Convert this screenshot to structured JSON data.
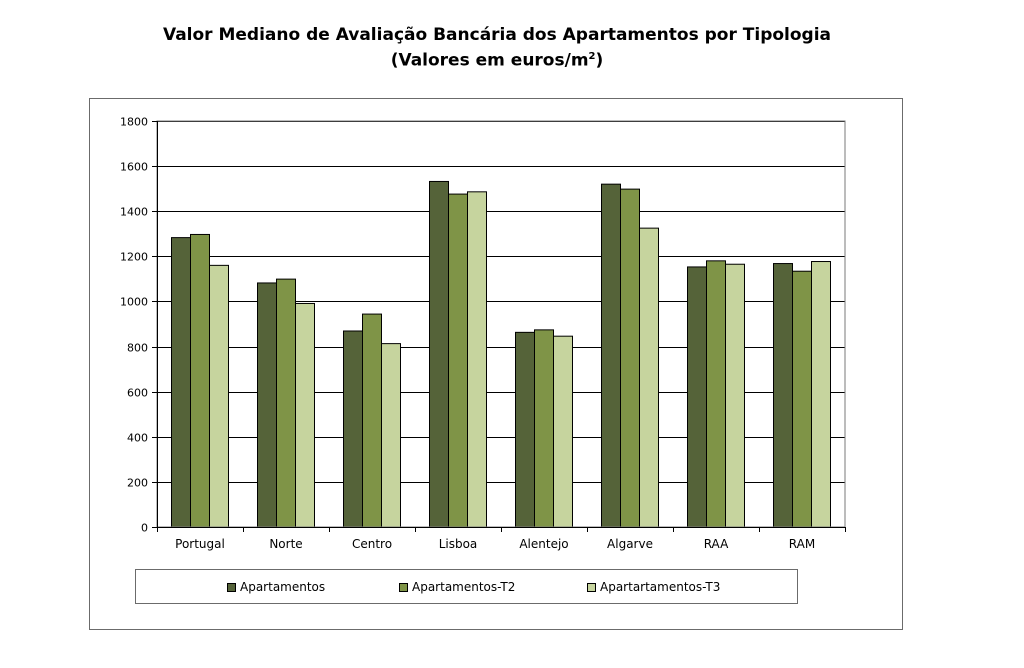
{
  "chart_data": {
    "type": "bar",
    "title_line1": "Valor Mediano de Avaliação Bancária dos Apartamentos por Tipologia",
    "title_line2_prefix": "(Valores em euros/m",
    "title_line2_sup": "2",
    "title_line2_suffix": ")",
    "categories": [
      "Portugal",
      "Norte",
      "Centro",
      "Lisboa",
      "Alentejo",
      "Algarve",
      "RAA",
      "RAM"
    ],
    "series": [
      {
        "name": "Apartamentos",
        "color": "#556339",
        "values": [
          1283,
          1082,
          869,
          1532,
          863,
          1520,
          1153,
          1168
        ]
      },
      {
        "name": "Apartamentos-T2",
        "color": "#7f9447",
        "values": [
          1297,
          1099,
          944,
          1476,
          874,
          1498,
          1180,
          1134
        ]
      },
      {
        "name": "Apartartamentos-T3",
        "color": "#c6d49e",
        "values": [
          1160,
          991,
          813,
          1486,
          846,
          1325,
          1165,
          1177
        ]
      }
    ],
    "y_ticks": [
      "0",
      "200",
      "400",
      "600",
      "800",
      "1000",
      "1200",
      "1400",
      "1600",
      "1800"
    ],
    "ylim": [
      0,
      1800
    ],
    "xlabel": "",
    "ylabel": "",
    "grid": true,
    "legend_position": "bottom"
  }
}
